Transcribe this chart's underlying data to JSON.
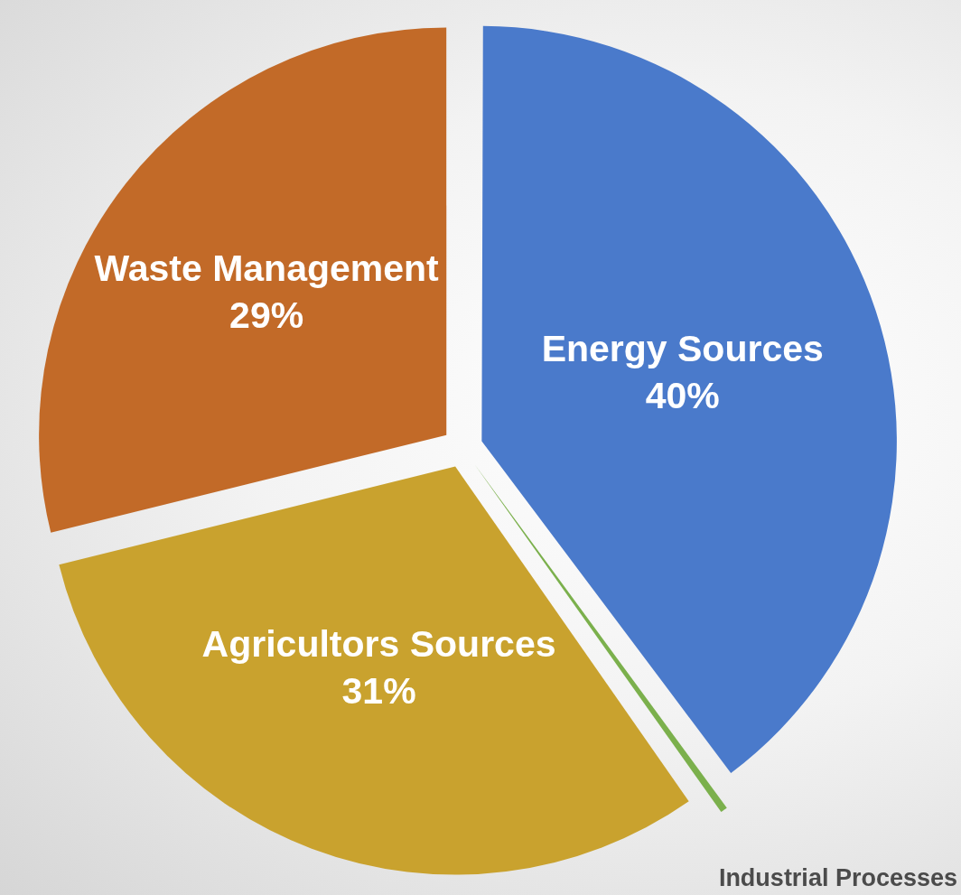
{
  "chart_data": {
    "type": "pie",
    "categories": [
      "Energy Sources",
      "Industrial Processes",
      "Agricultors Sources",
      "Waste Management"
    ],
    "values": [
      40,
      0.5,
      31,
      29
    ],
    "colors": [
      "#4a7acb",
      "#7bb04c",
      "#c9a22e",
      "#c26a28"
    ],
    "value_labels": [
      "40%",
      null,
      "31%",
      "29%"
    ]
  }
}
